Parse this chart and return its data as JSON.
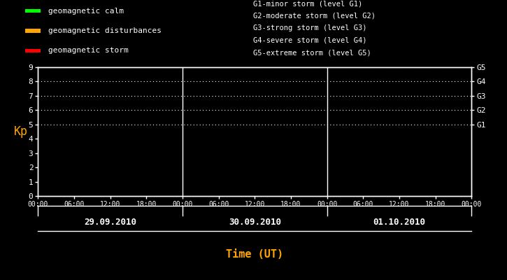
{
  "bg_color": "#000000",
  "fg_color": "#ffffff",
  "orange_color": "#ffa500",
  "title_xlabel": "Time (UT)",
  "ylabel": "Kp",
  "ylim": [
    0,
    9
  ],
  "yticks": [
    0,
    1,
    2,
    3,
    4,
    5,
    6,
    7,
    8,
    9
  ],
  "days": [
    "29.09.2010",
    "30.09.2010",
    "01.10.2010"
  ],
  "xtick_labels": [
    "00:00",
    "06:00",
    "12:00",
    "18:00",
    "00:00",
    "06:00",
    "12:00",
    "18:00",
    "00:00",
    "06:00",
    "12:00",
    "18:00",
    "00:00"
  ],
  "vline_positions": [
    1,
    2
  ],
  "hline_dotted": [
    5,
    6,
    7,
    8,
    9
  ],
  "g_labels": [
    "G5",
    "G4",
    "G3",
    "G2",
    "G1"
  ],
  "g_yvals": [
    9,
    8,
    7,
    6,
    5
  ],
  "legend_items": [
    {
      "color": "#00ff00",
      "label": "geomagnetic calm"
    },
    {
      "color": "#ffa500",
      "label": "geomagnetic disturbances"
    },
    {
      "color": "#ff0000",
      "label": "geomagnetic storm"
    }
  ],
  "storm_legend_lines": [
    "G1-minor storm (level G1)",
    "G2-moderate storm (level G2)",
    "G3-strong storm (level G3)",
    "G4-severe storm (level G4)",
    "G5-extreme storm (level G5)"
  ],
  "font_family": "monospace",
  "legend_fontsize": 8,
  "storm_legend_fontsize": 7.5,
  "axis_label_fontsize": 10,
  "ytick_fontsize": 8,
  "xtick_fontsize": 7,
  "day_label_fontsize": 9,
  "g_label_fontsize": 8
}
